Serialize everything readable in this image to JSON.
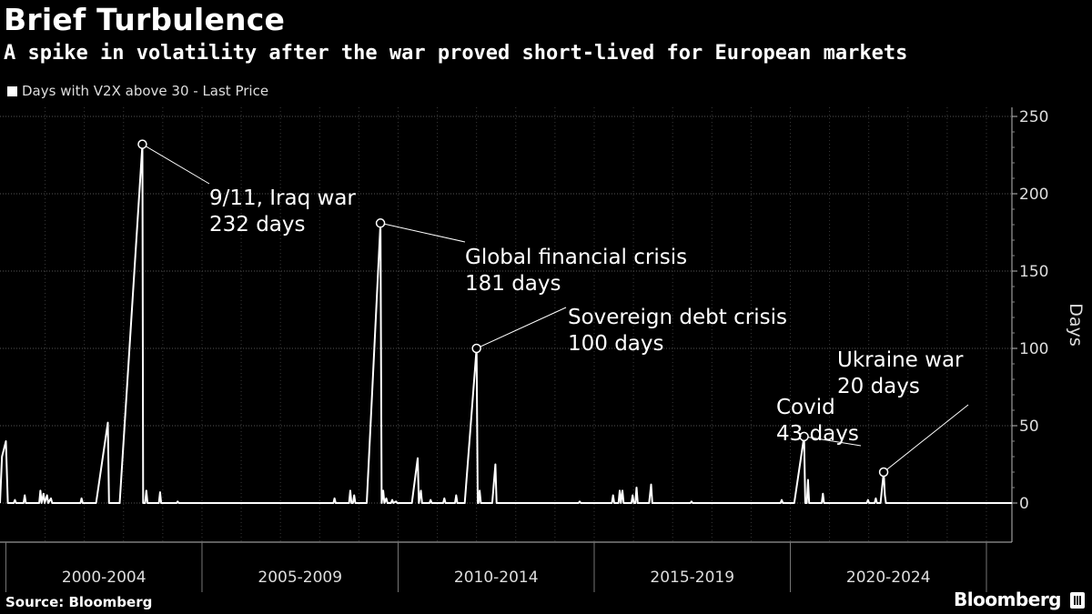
{
  "header": {
    "title": "Brief Turbulence",
    "subtitle": "A spike in volatility after the war proved short-lived for European markets"
  },
  "legend": {
    "label": "Days with V2X above 30 - Last Price",
    "color": "#ffffff"
  },
  "footer": {
    "source": "Source: Bloomberg",
    "brand": "Bloomberg"
  },
  "chart_data": {
    "type": "line",
    "ylabel": "Days",
    "ylim": [
      -25,
      255
    ],
    "yticks": [
      0,
      50,
      100,
      150,
      200,
      250
    ],
    "y_axis_side": "right",
    "grid": true,
    "xlim": [
      1998.85,
      2024.65
    ],
    "categories": [
      "2000-2004",
      "2005-2009",
      "2010-2014",
      "2015-2019",
      "2020-2024"
    ],
    "category_bounds": [
      1999.0,
      2004.0,
      2009.0,
      2014.0,
      2019.0,
      2024.0
    ],
    "series": [
      {
        "name": "Days with V2X above 30 - Last Price",
        "color": "#ffffff",
        "points": [
          [
            1998.85,
            0
          ],
          [
            1998.9,
            30
          ],
          [
            1999.0,
            40
          ],
          [
            1999.05,
            0
          ],
          [
            1999.2,
            0
          ],
          [
            1999.23,
            2
          ],
          [
            1999.26,
            0
          ],
          [
            1999.45,
            0
          ],
          [
            1999.48,
            5
          ],
          [
            1999.51,
            0
          ],
          [
            1999.85,
            0
          ],
          [
            1999.88,
            8
          ],
          [
            1999.91,
            0
          ],
          [
            1999.96,
            6
          ],
          [
            1999.99,
            0
          ],
          [
            2000.05,
            5
          ],
          [
            2000.08,
            0
          ],
          [
            2000.15,
            3
          ],
          [
            2000.18,
            0
          ],
          [
            2000.9,
            0
          ],
          [
            2000.93,
            3
          ],
          [
            2000.96,
            0
          ],
          [
            2001.3,
            0
          ],
          [
            2001.6,
            52
          ],
          [
            2001.63,
            0
          ],
          [
            2001.9,
            0
          ],
          [
            2002.48,
            232
          ],
          [
            2002.5,
            0
          ],
          [
            2002.55,
            0
          ],
          [
            2002.58,
            8
          ],
          [
            2002.61,
            0
          ],
          [
            2002.9,
            0
          ],
          [
            2002.93,
            7
          ],
          [
            2002.96,
            0
          ],
          [
            2003.35,
            0
          ],
          [
            2003.38,
            1
          ],
          [
            2003.41,
            0
          ],
          [
            2007.35,
            0
          ],
          [
            2007.38,
            3
          ],
          [
            2007.41,
            0
          ],
          [
            2007.75,
            0
          ],
          [
            2007.78,
            8
          ],
          [
            2007.81,
            0
          ],
          [
            2007.85,
            0
          ],
          [
            2007.88,
            5
          ],
          [
            2007.91,
            0
          ],
          [
            2008.2,
            0
          ],
          [
            2008.55,
            181
          ],
          [
            2008.58,
            0
          ],
          [
            2008.62,
            8
          ],
          [
            2008.65,
            0
          ],
          [
            2008.7,
            3
          ],
          [
            2008.73,
            0
          ],
          [
            2008.82,
            0
          ],
          [
            2008.85,
            2
          ],
          [
            2008.88,
            0
          ],
          [
            2008.95,
            1
          ],
          [
            2008.98,
            0
          ],
          [
            2009.35,
            0
          ],
          [
            2009.5,
            29
          ],
          [
            2009.53,
            0
          ],
          [
            2009.58,
            8
          ],
          [
            2009.61,
            0
          ],
          [
            2009.8,
            0
          ],
          [
            2009.83,
            2
          ],
          [
            2009.86,
            0
          ],
          [
            2010.15,
            0
          ],
          [
            2010.18,
            3
          ],
          [
            2010.21,
            0
          ],
          [
            2010.45,
            0
          ],
          [
            2010.48,
            5
          ],
          [
            2010.51,
            0
          ],
          [
            2010.7,
            0
          ],
          [
            2011.0,
            100
          ],
          [
            2011.03,
            0
          ],
          [
            2011.05,
            0
          ],
          [
            2011.08,
            8
          ],
          [
            2011.11,
            0
          ],
          [
            2011.4,
            0
          ],
          [
            2011.48,
            25
          ],
          [
            2011.51,
            0
          ],
          [
            2013.6,
            0
          ],
          [
            2013.63,
            1
          ],
          [
            2013.66,
            0
          ],
          [
            2014.45,
            0
          ],
          [
            2014.48,
            5
          ],
          [
            2014.51,
            0
          ],
          [
            2014.62,
            0
          ],
          [
            2014.65,
            8
          ],
          [
            2014.68,
            0
          ],
          [
            2014.72,
            8
          ],
          [
            2014.75,
            0
          ],
          [
            2014.95,
            0
          ],
          [
            2014.98,
            5
          ],
          [
            2015.01,
            0
          ],
          [
            2015.05,
            0
          ],
          [
            2015.08,
            10
          ],
          [
            2015.11,
            0
          ],
          [
            2015.4,
            0
          ],
          [
            2015.45,
            12
          ],
          [
            2015.48,
            0
          ],
          [
            2016.45,
            0
          ],
          [
            2016.48,
            1
          ],
          [
            2016.51,
            0
          ],
          [
            2018.75,
            0
          ],
          [
            2018.78,
            2
          ],
          [
            2018.81,
            0
          ],
          [
            2019.1,
            0
          ],
          [
            2019.35,
            43
          ],
          [
            2019.38,
            0
          ],
          [
            2019.42,
            0
          ],
          [
            2019.45,
            15
          ],
          [
            2019.48,
            0
          ],
          [
            2019.8,
            0
          ],
          [
            2019.83,
            6
          ],
          [
            2019.86,
            0
          ],
          [
            2020.95,
            0
          ],
          [
            2020.98,
            2
          ],
          [
            2021.01,
            0
          ],
          [
            2021.15,
            0
          ],
          [
            2021.18,
            3
          ],
          [
            2021.21,
            0
          ],
          [
            2021.3,
            0
          ],
          [
            2021.38,
            20
          ],
          [
            2021.41,
            5
          ],
          [
            2021.44,
            0
          ],
          [
            2024.65,
            0
          ]
        ]
      }
    ],
    "annotations": [
      {
        "lines": [
          "9/11, Iraq war",
          "232 days"
        ],
        "x": 2002.48,
        "y": 232
      },
      {
        "lines": [
          "Global financial crisis",
          "181 days"
        ],
        "x": 2008.55,
        "y": 181
      },
      {
        "lines": [
          "Sovereign debt crisis",
          "100 days"
        ],
        "x": 2011.0,
        "y": 100
      },
      {
        "lines": [
          "Covid",
          "43 days"
        ],
        "x": 2019.35,
        "y": 43
      },
      {
        "lines": [
          "Ukraine war",
          "20 days"
        ],
        "x": 2021.38,
        "y": 20
      }
    ]
  }
}
